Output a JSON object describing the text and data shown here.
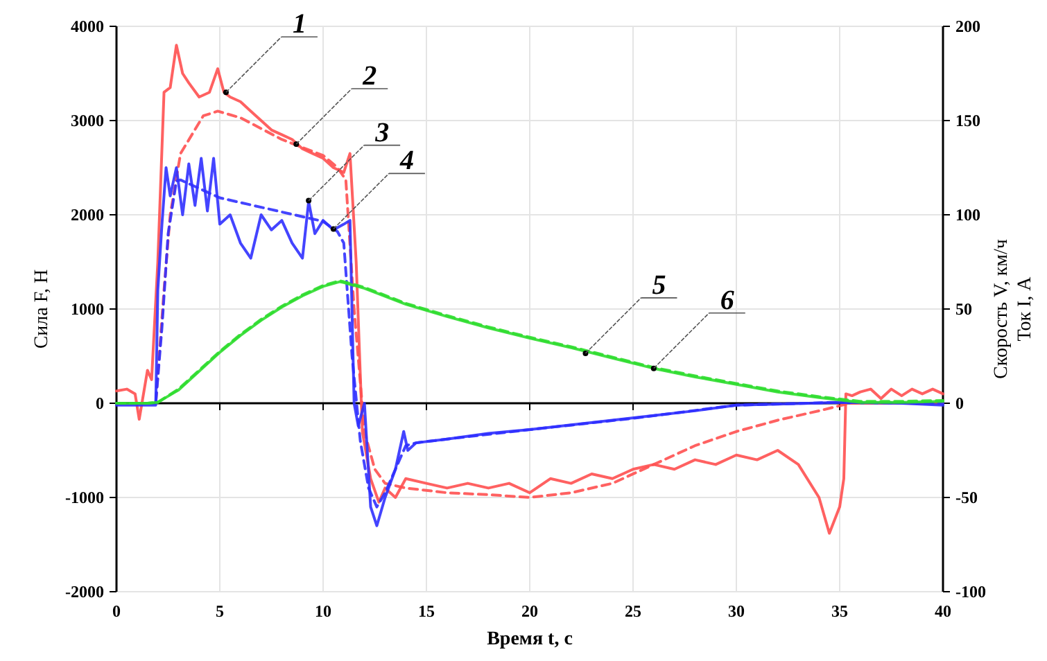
{
  "chart_data": {
    "type": "line",
    "xlabel": "Время t, с",
    "ylabel": "Сила F, Н",
    "y2label": "Скорость V, км/ч\nТок I, А",
    "xlim": [
      0,
      40
    ],
    "xticks": [
      0,
      5,
      10,
      15,
      20,
      25,
      30,
      35,
      40
    ],
    "ylim": [
      -2000,
      4000
    ],
    "yticks": [
      -2000,
      -1000,
      0,
      1000,
      2000,
      3000,
      4000
    ],
    "y2lim": [
      -100,
      200
    ],
    "y2ticks": [
      -100,
      -50,
      0,
      50,
      100,
      150,
      200
    ],
    "grid": true,
    "series": [
      {
        "color": "#ff5050",
        "line_style": "solid",
        "x": [
          0,
          0.5,
          0.9,
          1.1,
          1.5,
          1.7,
          2.0,
          2.3,
          2.6,
          2.9,
          3.2,
          3.5,
          4.0,
          4.5,
          4.9,
          5.2,
          5.5,
          6,
          6.5,
          7,
          7.5,
          8,
          8.5,
          9,
          9.5,
          10,
          10.5,
          11,
          11.3,
          11.6,
          11.9,
          12.3,
          12.7,
          13,
          13.5,
          14,
          15,
          16,
          17,
          18,
          19,
          20,
          21,
          22,
          23,
          24,
          25,
          26,
          27,
          28,
          29,
          30,
          31,
          32,
          33,
          34,
          34.5,
          35,
          35.2,
          35.3,
          35.6,
          36,
          36.5,
          37,
          37.5,
          38,
          38.5,
          39,
          39.5,
          40
        ],
        "values": [
          130,
          150,
          100,
          -170,
          350,
          250,
          1500,
          3300,
          3350,
          3800,
          3500,
          3400,
          3250,
          3300,
          3550,
          3300,
          3250,
          3200,
          3100,
          3000,
          2900,
          2850,
          2800,
          2700,
          2650,
          2600,
          2500,
          2450,
          2650,
          1500,
          -300,
          -800,
          -1050,
          -900,
          -1000,
          -800,
          -850,
          -900,
          -850,
          -900,
          -850,
          -950,
          -800,
          -850,
          -750,
          -800,
          -700,
          -650,
          -700,
          -600,
          -650,
          -550,
          -600,
          -500,
          -650,
          -1000,
          -1380,
          -1100,
          -800,
          100,
          80,
          120,
          150,
          50,
          150,
          80,
          150,
          100,
          150,
          100
        ]
      },
      {
        "color": "#ff5050",
        "line_style": "dashed",
        "x": [
          0,
          1.9,
          2.3,
          2.6,
          3.1,
          4.2,
          4.9,
          6,
          8,
          10,
          10.7,
          11.1,
          11.5,
          12,
          12.5,
          13,
          14,
          16,
          18,
          20,
          22,
          24,
          26,
          28,
          30,
          32,
          34,
          35.5,
          40
        ],
        "values": [
          0,
          0,
          1200,
          2000,
          2650,
          3050,
          3100,
          3030,
          2800,
          2630,
          2500,
          2370,
          1000,
          -300,
          -700,
          -850,
          -900,
          -950,
          -970,
          -1000,
          -950,
          -850,
          -650,
          -450,
          -300,
          -180,
          -80,
          0,
          0
        ]
      },
      {
        "color": "#3030ff",
        "line_style": "solid",
        "axis": "y2",
        "x": [
          0,
          1.9,
          2.0,
          2.2,
          2.4,
          2.6,
          2.9,
          3.2,
          3.5,
          3.8,
          4.1,
          4.4,
          4.7,
          5.0,
          5.5,
          6,
          6.5,
          7,
          7.5,
          8,
          8.5,
          9,
          9.3,
          9.6,
          10,
          10.5,
          11,
          11.3,
          11.5,
          11.7,
          12,
          12.3,
          12.6,
          13,
          13.5,
          13.9,
          14.1,
          14.5,
          16,
          18,
          20,
          22,
          24,
          26,
          28,
          30,
          32,
          35,
          38,
          40
        ],
        "values": [
          -1,
          -1,
          60,
          95,
          125,
          110,
          125,
          100,
          127,
          105,
          130,
          102,
          130,
          95,
          100,
          85,
          77,
          100,
          92,
          97,
          85,
          77,
          107,
          90,
          97,
          92,
          95,
          97,
          0,
          -12,
          0,
          -55,
          -65,
          -50,
          -35,
          -15,
          -25,
          -21,
          -19,
          -16,
          -14,
          -11.5,
          -9,
          -6.5,
          -4,
          -1,
          -0.5,
          0.5,
          0,
          -1
        ]
      },
      {
        "color": "#3030ff",
        "line_style": "dashed",
        "axis": "y2",
        "x": [
          0,
          1.9,
          2.2,
          2.5,
          2.9,
          3.1,
          5,
          8,
          10,
          10.7,
          11,
          11.4,
          11.8,
          12.2,
          12.6,
          13,
          13.5,
          14,
          14.5,
          16,
          20,
          25,
          30,
          35,
          40
        ],
        "values": [
          0,
          0,
          40,
          90,
          118,
          118.5,
          109,
          101.5,
          96.5,
          91,
          85,
          25,
          -20,
          -45,
          -55,
          -47.5,
          -35,
          -22.5,
          -21,
          -19,
          -14,
          -8,
          -1,
          0.5,
          0
        ]
      },
      {
        "color": "#30dd30",
        "line_style": "solid",
        "axis": "y2",
        "x": [
          0,
          1.5,
          2,
          3,
          4,
          5,
          6,
          7,
          8,
          9,
          10,
          10.8,
          11,
          12,
          14,
          16,
          18,
          20,
          22,
          24,
          26,
          28,
          30,
          32,
          34,
          36,
          38,
          40
        ],
        "values": [
          0,
          0,
          0.5,
          7,
          17,
          27,
          36,
          44,
          51,
          57,
          62,
          64.5,
          64,
          61,
          52.5,
          46,
          40,
          34.5,
          29.5,
          24,
          18.5,
          14,
          10,
          6,
          3,
          0.5,
          0.5,
          1
        ]
      },
      {
        "color": "#30dd30",
        "line_style": "dashed",
        "axis": "y2",
        "x": [
          0,
          1.5,
          2,
          3,
          4,
          5,
          6,
          7,
          8,
          9,
          10,
          10.8,
          11,
          12,
          14,
          16,
          18,
          20,
          22,
          24,
          26,
          28,
          30,
          32,
          34,
          36,
          38,
          40
        ],
        "values": [
          0,
          0,
          0.5,
          7.5,
          17.5,
          27.5,
          36.5,
          44.5,
          51.5,
          57.5,
          62.5,
          65,
          64.5,
          61.5,
          53,
          46.5,
          40.5,
          35,
          30,
          24.5,
          19,
          14.5,
          10.5,
          6.5,
          3.5,
          1,
          1,
          1.5
        ]
      }
    ],
    "annotations": [
      {
        "text": "1",
        "x": 5.3,
        "y": 3300
      },
      {
        "text": "2",
        "x": 8.7,
        "y": 2750
      },
      {
        "text": "3",
        "x": 9.3,
        "y": 2150
      },
      {
        "text": "4",
        "x": 10.5,
        "y": 1850
      },
      {
        "text": "5",
        "x": 22.7,
        "y": 530
      },
      {
        "text": "6",
        "x": 26,
        "y": 370
      }
    ]
  }
}
